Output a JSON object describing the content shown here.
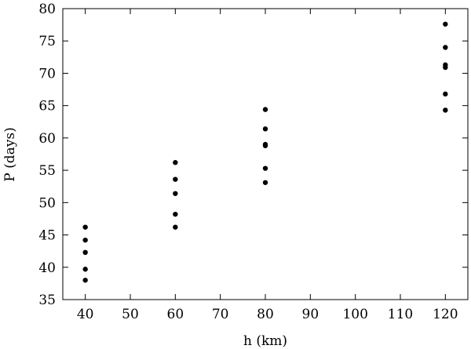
{
  "chart_data": {
    "type": "scatter",
    "title": "",
    "xlabel": "h (km)",
    "ylabel": "P (days)",
    "xlim": [
      35,
      125
    ],
    "ylim": [
      35,
      80
    ],
    "xticks": [
      40,
      50,
      60,
      70,
      80,
      90,
      100,
      110,
      120
    ],
    "yticks": [
      35,
      40,
      45,
      50,
      55,
      60,
      65,
      70,
      75,
      80
    ],
    "grid": false,
    "legend": "none",
    "marker_color": "#000000",
    "series": [
      {
        "points": [
          {
            "x": 40,
            "y": 46.2
          },
          {
            "x": 40,
            "y": 44.2
          },
          {
            "x": 40,
            "y": 42.3
          },
          {
            "x": 40,
            "y": 39.7
          },
          {
            "x": 40,
            "y": 38.0
          },
          {
            "x": 60,
            "y": 56.2
          },
          {
            "x": 60,
            "y": 53.6
          },
          {
            "x": 60,
            "y": 51.4
          },
          {
            "x": 60,
            "y": 48.2
          },
          {
            "x": 60,
            "y": 46.2
          },
          {
            "x": 80,
            "y": 64.4
          },
          {
            "x": 80,
            "y": 61.4
          },
          {
            "x": 80,
            "y": 59.0
          },
          {
            "x": 80,
            "y": 58.8
          },
          {
            "x": 80,
            "y": 55.3
          },
          {
            "x": 80,
            "y": 53.1
          },
          {
            "x": 120,
            "y": 77.6
          },
          {
            "x": 120,
            "y": 74.0
          },
          {
            "x": 120,
            "y": 71.3
          },
          {
            "x": 120,
            "y": 70.9
          },
          {
            "x": 120,
            "y": 66.8
          },
          {
            "x": 120,
            "y": 64.3
          }
        ]
      }
    ]
  }
}
